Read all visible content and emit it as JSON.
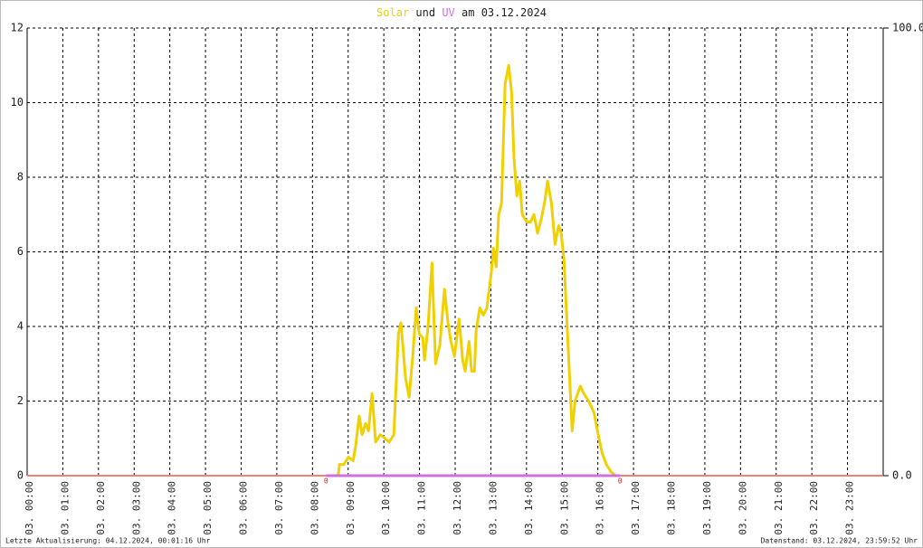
{
  "chart_data": {
    "type": "line",
    "title_middle": "und",
    "title_end": "am 03.12.2024",
    "series": [
      {
        "name": "Solar",
        "color": "#f0d000",
        "x": [
          8.72,
          8.76,
          8.88,
          9.01,
          9.14,
          9.21,
          9.31,
          9.39,
          9.49,
          9.57,
          9.67,
          9.77,
          9.9,
          10.03,
          10.15,
          10.28,
          10.41,
          10.48,
          10.61,
          10.71,
          10.81,
          10.91,
          10.99,
          11.09,
          11.14,
          11.24,
          11.35,
          11.45,
          11.57,
          11.7,
          11.8,
          11.88,
          11.98,
          12.11,
          12.21,
          12.28,
          12.39,
          12.46,
          12.54,
          12.59,
          12.69,
          12.79,
          12.89,
          13.02,
          13.07,
          13.15,
          13.22,
          13.3,
          13.4,
          13.5,
          13.58,
          13.65,
          13.73,
          13.81,
          13.88,
          14.01,
          14.11,
          14.21,
          14.31,
          14.42,
          14.52,
          14.59,
          14.7,
          14.8,
          14.9,
          14.97,
          15.05,
          15.18,
          15.28,
          15.36,
          15.51,
          15.61,
          15.74,
          15.89,
          15.99,
          16.12,
          16.24,
          16.37,
          16.5
        ],
        "values": [
          0,
          0.3,
          0.3,
          0.5,
          0.4,
          0.8,
          1.6,
          1.1,
          1.4,
          1.2,
          2.2,
          0.9,
          1.1,
          1.0,
          0.9,
          1.1,
          3.8,
          4.1,
          2.6,
          2.1,
          3.2,
          4.5,
          3.8,
          3.7,
          3.1,
          4.0,
          5.7,
          3.0,
          3.5,
          5.0,
          4.1,
          3.6,
          3.2,
          4.2,
          3.1,
          2.8,
          3.6,
          2.8,
          2.8,
          3.9,
          4.5,
          4.3,
          4.5,
          5.5,
          6.1,
          5.6,
          7.0,
          7.3,
          10.5,
          11.0,
          10.3,
          8.5,
          7.5,
          7.9,
          7.0,
          6.8,
          6.8,
          7.0,
          6.5,
          6.9,
          7.4,
          7.9,
          7.3,
          6.2,
          6.7,
          6.5,
          5.8,
          3.2,
          1.2,
          2.0,
          2.4,
          2.2,
          2.0,
          1.7,
          1.2,
          0.6,
          0.3,
          0.1,
          0
        ]
      },
      {
        "name": "UV",
        "color": "#d070e0",
        "axis": "y2",
        "x": [
          8.38,
          16.62
        ],
        "values": [
          0,
          0
        ]
      }
    ],
    "annotations": [
      {
        "text": "0",
        "x": 8.38
      },
      {
        "text": "0",
        "x": 16.62
      }
    ],
    "xlim": [
      0,
      24
    ],
    "xticks": [
      {
        "value": 0,
        "label": "03. 00:00"
      },
      {
        "value": 1,
        "label": "03. 01:00"
      },
      {
        "value": 2,
        "label": "03. 02:00"
      },
      {
        "value": 3,
        "label": "03. 03:00"
      },
      {
        "value": 4,
        "label": "03. 04:00"
      },
      {
        "value": 5,
        "label": "03. 05:00"
      },
      {
        "value": 6,
        "label": "03. 06:00"
      },
      {
        "value": 7,
        "label": "03. 07:00"
      },
      {
        "value": 8,
        "label": "03. 08:00"
      },
      {
        "value": 9,
        "label": "03. 09:00"
      },
      {
        "value": 10,
        "label": "03. 10:00"
      },
      {
        "value": 11,
        "label": "03. 11:00"
      },
      {
        "value": 12,
        "label": "03. 12:00"
      },
      {
        "value": 13,
        "label": "03. 13:00"
      },
      {
        "value": 14,
        "label": "03. 14:00"
      },
      {
        "value": 15,
        "label": "03. 15:00"
      },
      {
        "value": 16,
        "label": "03. 16:00"
      },
      {
        "value": 17,
        "label": "03. 17:00"
      },
      {
        "value": 18,
        "label": "03. 18:00"
      },
      {
        "value": 19,
        "label": "03. 19:00"
      },
      {
        "value": 20,
        "label": "03. 20:00"
      },
      {
        "value": 21,
        "label": "03. 21:00"
      },
      {
        "value": 22,
        "label": "03. 22:00"
      },
      {
        "value": 23,
        "label": "03. 23:00"
      }
    ],
    "ylim": [
      0,
      12
    ],
    "yticks": [
      0,
      2,
      4,
      6,
      8,
      10,
      12
    ],
    "y2lim": [
      0,
      100
    ],
    "y2ticks": [
      {
        "value": 0,
        "label": "0.0"
      },
      {
        "value": 100,
        "label": "100.0"
      }
    ],
    "grid": true,
    "footer_left": "Letzte Aktualisierung: 04.12.2024, 00:01:16 Uhr",
    "footer_right": "Datenstand: 03.12.2024, 23:59:52 Uhr"
  }
}
